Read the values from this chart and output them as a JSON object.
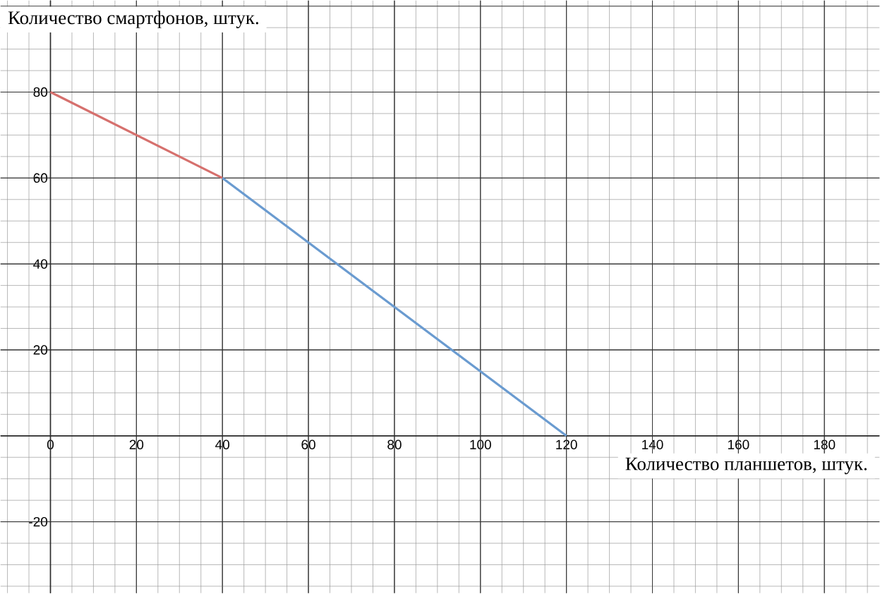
{
  "chart_data": {
    "type": "line",
    "xlabel": "Количество планшетов, штук.",
    "ylabel": "Количество смартфонов, штук.",
    "xlim": [
      -11.6,
      192.8
    ],
    "ylim": [
      -36.6,
      101.3
    ],
    "xticks": [
      0,
      20,
      40,
      60,
      80,
      100,
      120,
      140,
      160,
      180
    ],
    "yticks": [
      -20,
      20,
      40,
      60,
      80
    ],
    "grid": true,
    "series": [
      {
        "color": "#d6706d",
        "x": [
          0,
          40
        ],
        "values": [
          80,
          60
        ]
      },
      {
        "color": "#6a9bd0",
        "x": [
          40,
          120
        ],
        "values": [
          60,
          0
        ]
      }
    ]
  }
}
